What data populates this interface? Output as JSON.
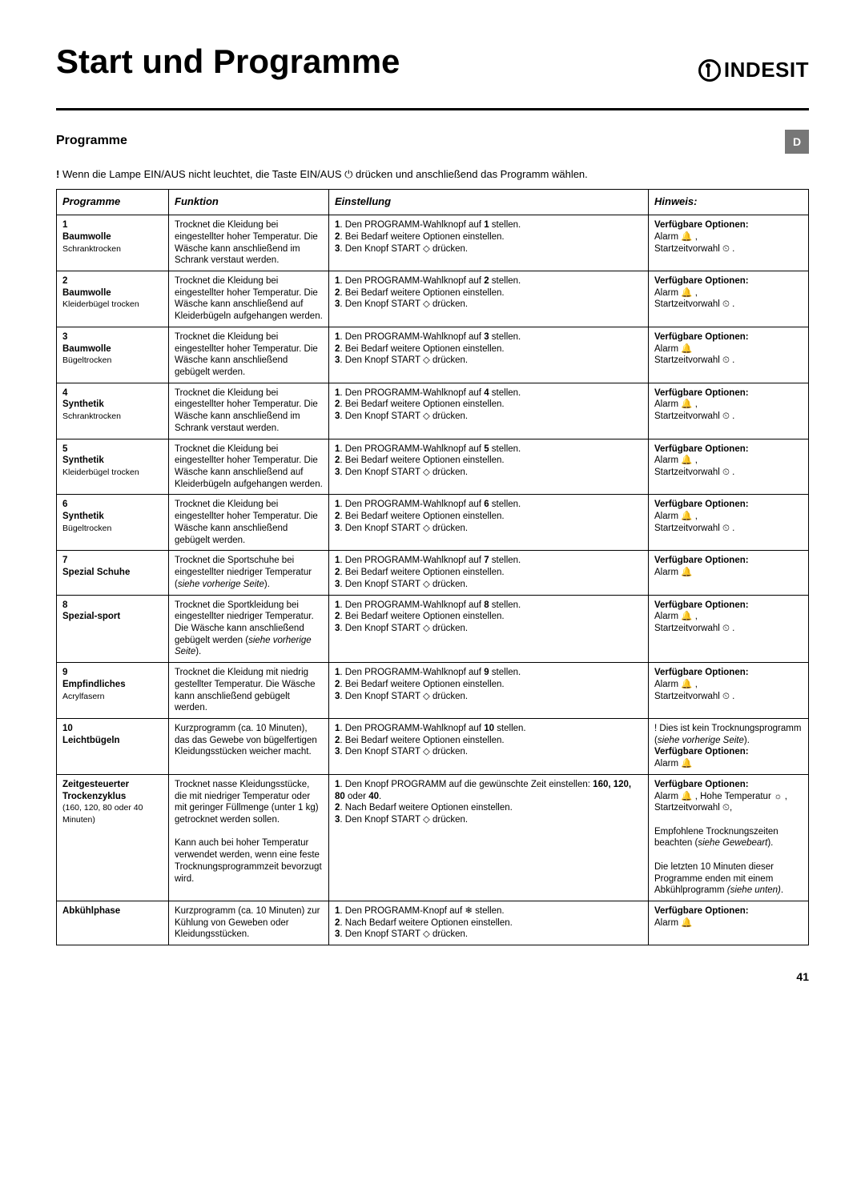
{
  "title": "Start und Programme",
  "brand": "INDESIT",
  "section": "Programme",
  "lang_box": "D",
  "intro_prefix": "!",
  "intro": "Wenn die Lampe EIN/AUS nicht leuchtet, die Taste EIN/AUS ⏻ drücken und anschließend das Programm wählen.",
  "page_num": "41",
  "headers": {
    "c1": "Programme",
    "c2": "Funktion",
    "c3": "Einstellung",
    "c4": "Hinweis:"
  },
  "icons": {
    "alarm": "🔔",
    "clock": "⏲",
    "diamond": "◇",
    "sun": "☼",
    "shirt": "👕",
    "hanger": "⎯",
    "iron": "⎺",
    "flask": "△",
    "shoe": "👟",
    "sport": "⚽",
    "wool": "❋",
    "easy": "⤳",
    "snow": "❄"
  },
  "rows": [
    {
      "num": "1",
      "name": "Baumwolle",
      "sub": "Schranktrocken",
      "funk": "Trocknet die Kleidung bei eingestellter hoher Temperatur. Die Wäsche kann anschließend im Schrank verstaut werden.",
      "ein": "1. Den PROGRAMM-Wahlknopf auf 1 stellen.\n2. Bei Bedarf weitere Optionen einstellen.\n3. Den Knopf START ◇ drücken.",
      "hin": "Verfügbare Optionen:\nAlarm 🔔 ,\nStartzeitvorwahl ⏲ ."
    },
    {
      "num": "2",
      "name": "Baumwolle",
      "sub": "Kleiderbügel trocken",
      "funk": "Trocknet die Kleidung bei eingestellter hoher Temperatur. Die Wäsche kann anschließend auf Kleiderbügeln aufgehangen werden.",
      "ein": "1. Den PROGRAMM-Wahlknopf auf 2 stellen.\n2. Bei Bedarf weitere Optionen einstellen.\n3. Den Knopf START ◇ drücken.",
      "hin": "Verfügbare Optionen:\nAlarm  🔔 ,\nStartzeitvorwahl ⏲ ."
    },
    {
      "num": "3",
      "name": "Baumwolle",
      "sub": "Bügeltrocken",
      "funk": "Trocknet die Kleidung bei eingestellter hoher Temperatur. Die Wäsche kann anschließend gebügelt werden.",
      "ein": "1. Den PROGRAMM-Wahlknopf auf 3 stellen.\n2. Bei Bedarf weitere Optionen einstellen.\n3. Den Knopf START ◇  drücken.",
      "hin": "Verfügbare Optionen:\nAlarm  🔔\nStartzeitvorwahl ⏲ ."
    },
    {
      "num": "4",
      "name": "Synthetik",
      "sub": "Schranktrocken",
      "funk": "Trocknet die Kleidung bei eingestellter hoher Temperatur. Die Wäsche kann anschließend im Schrank verstaut werden.",
      "ein": "1. Den PROGRAMM-Wahlknopf auf 4 stellen.\n2. Bei Bedarf weitere Optionen einstellen.\n3. Den Knopf START ◇  drücken.",
      "hin": "Verfügbare Optionen:\nAlarm 🔔 ,\nStartzeitvorwahl ⏲ ."
    },
    {
      "num": "5",
      "name": "Synthetik",
      "sub": "Kleiderbügel trocken",
      "funk": "Trocknet die Kleidung bei eingestellter hoher Temperatur. Die Wäsche kann anschließend auf Kleiderbügeln aufgehangen werden.",
      "ein": "1. Den PROGRAMM-Wahlknopf auf 5 stellen.\n2. Bei Bedarf weitere Optionen einstellen.\n3. Den Knopf START ◇  drücken.",
      "hin": "Verfügbare Optionen:\nAlarm  🔔 ,\nStartzeitvorwahl ⏲ ."
    },
    {
      "num": "6",
      "name": "Synthetik",
      "sub": "Bügeltrocken",
      "funk": "Trocknet die Kleidung bei eingestellter hoher Temperatur. Die Wäsche kann anschließend gebügelt werden.",
      "ein": "1. Den PROGRAMM-Wahlknopf auf 6 stellen.\n2. Bei Bedarf weitere Optionen einstellen.\n3. Den Knopf START ◇  drücken.",
      "hin": "Verfügbare Optionen:\nAlarm 🔔 ,\nStartzeitvorwahl ⏲ ."
    },
    {
      "num": "7",
      "name": "Spezial Schuhe",
      "sub": "",
      "funk": "Trocknet die Sportschuhe bei eingestellter niedriger Temperatur (siehe vorherige Seite).",
      "ein": "1. Den PROGRAMM-Wahlknopf auf 7 stellen.\n2. Bei Bedarf weitere Optionen einstellen.\n3. Den Knopf START ◇  drücken.",
      "hin": "Verfügbare Optionen:\nAlarm  🔔"
    },
    {
      "num": "8",
      "name": "Spezial-sport",
      "sub": "",
      "funk": "Trocknet die Sportkleidung bei eingestellter niedriger Temperatur. Die Wäsche kann anschließend gebügelt werden (siehe vorherige Seite).",
      "ein": "1. Den PROGRAMM-Wahlknopf auf 8 stellen.\n2. Bei Bedarf weitere Optionen einstellen.\n3. Den Knopf START ◇ drücken.",
      "hin": "Verfügbare Optionen:\nAlarm 🔔 ,\nStartzeitvorwahl ⏲ ."
    },
    {
      "num": "9",
      "name": "Empfindliches",
      "sub": "Acrylfasern",
      "funk": "Trocknet die Kleidung mit niedrig gestellter Temperatur. Die Wäsche kann anschließend gebügelt werden.",
      "ein": "1. Den PROGRAMM-Wahlknopf auf 9 stellen.\n2. Bei Bedarf weitere Optionen einstellen.\n3. Den Knopf START ◇  drücken.",
      "hin": "Verfügbare Optionen:\nAlarm 🔔 ,\nStartzeitvorwahl ⏲ ."
    },
    {
      "num": "10",
      "name": "Leichtbügeln",
      "sub": "",
      "funk": "Kurzprogramm (ca. 10 Minuten), das das Gewebe von bügelfertigen Kleidungsstücken weicher macht.",
      "ein": "1. Den PROGRAMM-Wahlknopf auf 10 stellen.\n2. Bei Bedarf weitere Optionen einstellen.\n3. Den Knopf START ◇  drücken.",
      "hin": "! Dies ist kein Trocknungsprogramm (siehe vorherige Seite).\nVerfügbare Optionen:\nAlarm 🔔"
    },
    {
      "num": "",
      "name": "Zeitgesteuerter Trockenzyklus",
      "sub": "(160, 120, 80 oder 40 Minuten)",
      "funk": "Trocknet nasse Kleidungsstücke, die mit niedriger Temperatur oder mit geringer Füllmenge (unter 1 kg) getrocknet werden sollen.\n\nKann auch bei hoher Temperatur verwendet werden, wenn eine feste Trocknungsprogrammzeit bevorzugt wird.",
      "ein": "1. Den Knopf PROGRAMM auf die gewünschte Zeit einstellen: 160, 120, 80 oder 40.\n2. Nach Bedarf weitere Optionen einstellen.\n3. Den Knopf START ◇  drücken.",
      "hin": "Verfügbare Optionen:\nAlarm 🔔 , Hohe Temperatur ☼ , Startzeitvorwahl ⏲,\n\nEmpfohlene Trocknungszeiten beachten (siehe Gewebeart).\n\nDie letzten 10 Minuten dieser Programme enden mit einem Abkühlprogramm (siehe unten)."
    },
    {
      "num": "",
      "name": "Abkühlphase",
      "sub": "",
      "funk": "Kurzprogramm (ca. 10 Minuten) zur Kühlung von Geweben oder Kleidungsstücken.",
      "ein": "1.  Den PROGRAMM-Knopf auf ❄ stellen.\n2.  Nach Bedarf weitere Optionen einstellen.\n3.  Den Knopf START ◇ drücken.",
      "hin": "Verfügbare Optionen:\nAlarm 🔔"
    }
  ]
}
